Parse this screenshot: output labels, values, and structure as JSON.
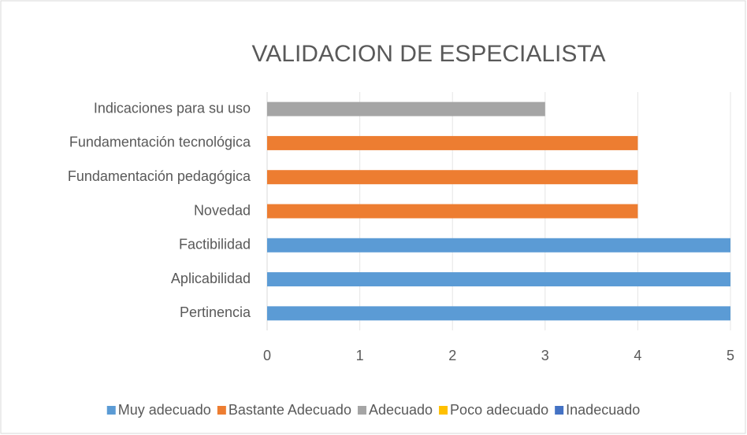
{
  "chart_data": {
    "type": "bar",
    "orientation": "horizontal",
    "stacked": true,
    "title": "VALIDACION DE ESPECIALISTA",
    "categories": [
      "Pertinencia",
      "Aplicabilidad",
      "Factibilidad",
      "Novedad",
      "Fundamentación pedagógica",
      "Fundamentación tecnológica",
      "Indicaciones para su uso"
    ],
    "series": [
      {
        "name": "Muy adecuado",
        "color": "#5b9bd5",
        "values": [
          5,
          5,
          5,
          null,
          null,
          null,
          null
        ]
      },
      {
        "name": "Bastante Adecuado",
        "color": "#ed7d31",
        "values": [
          null,
          null,
          null,
          4,
          4,
          4,
          null
        ]
      },
      {
        "name": "Adecuado",
        "color": "#a5a5a5",
        "values": [
          null,
          null,
          null,
          null,
          null,
          null,
          3
        ]
      },
      {
        "name": "Poco adecuado",
        "color": "#ffc000",
        "values": [
          null,
          null,
          null,
          null,
          null,
          null,
          null
        ]
      },
      {
        "name": "Inadecuado",
        "color": "#4472c4",
        "values": [
          null,
          null,
          null,
          null,
          null,
          null,
          null
        ]
      }
    ],
    "xlim": [
      0,
      5
    ],
    "xticks": [
      0,
      1,
      2,
      3,
      4,
      5
    ],
    "grid": true,
    "legend": "bottom"
  }
}
